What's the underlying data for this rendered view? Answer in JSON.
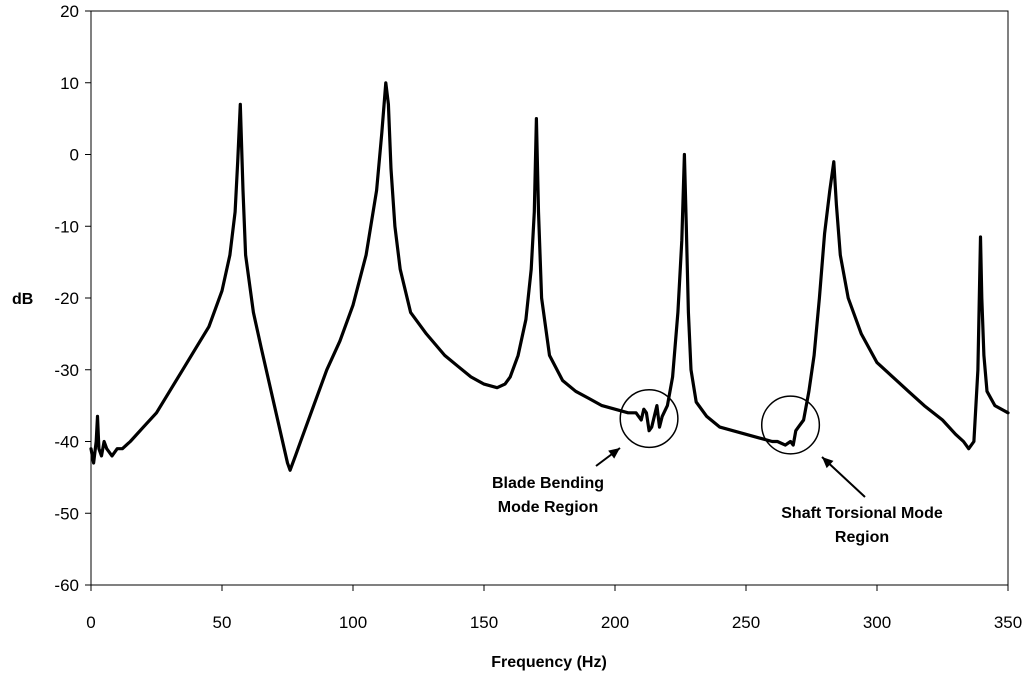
{
  "chart_data": {
    "type": "line",
    "title": "",
    "xlabel": "Frequency (Hz)",
    "ylabel": "dB",
    "xlim": [
      0,
      350
    ],
    "ylim": [
      -60,
      20
    ],
    "x_ticks": [
      0,
      50,
      100,
      150,
      200,
      250,
      300,
      350
    ],
    "y_ticks": [
      20,
      10,
      0,
      -10,
      -20,
      -30,
      -40,
      -50,
      -60
    ],
    "grid": false,
    "legend": "none",
    "series": [
      {
        "color": "#000000",
        "x": [
          0,
          1,
          2,
          2.5,
          3,
          4,
          5,
          6,
          8,
          10,
          12,
          15,
          20,
          25,
          30,
          35,
          40,
          45,
          50,
          53,
          55,
          56,
          57,
          58,
          59,
          62,
          65,
          70,
          75,
          76,
          78,
          80,
          85,
          90,
          95,
          100,
          105,
          109,
          111,
          112.5,
          113.5,
          114.5,
          116,
          118,
          122,
          128,
          135,
          140,
          145,
          150,
          155,
          158,
          160,
          163,
          166,
          168,
          169.2,
          170,
          170.8,
          172,
          175,
          180,
          185,
          190,
          195,
          200,
          205,
          208,
          210,
          211,
          212,
          213,
          214,
          215,
          216,
          217,
          218,
          220,
          222,
          224,
          225.5,
          226.5,
          227.2,
          228,
          229,
          231,
          235,
          240,
          245,
          250,
          255,
          260,
          262,
          265,
          267,
          268,
          269,
          270,
          272,
          274,
          276,
          278,
          280,
          282,
          283.5,
          284.5,
          286,
          289,
          294,
          300,
          306,
          312,
          318,
          325,
          330,
          333,
          335,
          337,
          338.5,
          339.5,
          340,
          340.8,
          342,
          345,
          350
        ],
        "y": [
          -41,
          -43,
          -40,
          -36.5,
          -41,
          -42,
          -40,
          -41,
          -42,
          -41,
          -41,
          -40,
          -38,
          -36,
          -33,
          -30,
          -27,
          -24,
          -19,
          -14,
          -8,
          -1,
          7,
          -5,
          -14,
          -22,
          -27,
          -35,
          -43,
          -44,
          -42,
          -40,
          -35,
          -30,
          -26,
          -21,
          -14,
          -5,
          3,
          10,
          7,
          -2,
          -10,
          -16,
          -22,
          -25,
          -28,
          -29.5,
          -31,
          -32,
          -32.5,
          -32,
          -31,
          -28,
          -23,
          -16,
          -8,
          5,
          -8,
          -20,
          -28,
          -31.5,
          -33,
          -34,
          -35,
          -35.5,
          -36,
          -36,
          -37,
          -35.5,
          -36,
          -38.5,
          -38,
          -36.5,
          -35,
          -38,
          -36.5,
          -35,
          -31,
          -22,
          -12,
          0,
          -10,
          -22,
          -30,
          -34.5,
          -36.5,
          -38,
          -38.5,
          -39,
          -39.5,
          -40,
          -40,
          -40.5,
          -40,
          -40.5,
          -38.5,
          -38,
          -37,
          -33,
          -28,
          -20,
          -11,
          -5,
          -1,
          -7,
          -14,
          -20,
          -25,
          -29,
          -31,
          -33,
          -35,
          -37,
          -39,
          -40,
          -41,
          -40,
          -30,
          -11.5,
          -20,
          -28,
          -33,
          -35,
          -36
        ]
      }
    ],
    "annotations": [
      {
        "lines": [
          "Blade Bending",
          "Mode Region"
        ],
        "circle_center": [
          213,
          -36.8
        ],
        "circle_radius": 11
      },
      {
        "lines": [
          "Shaft Torsional Mode",
          "Region"
        ],
        "circle_center": [
          267,
          -37.7
        ],
        "circle_radius": 11
      }
    ]
  }
}
